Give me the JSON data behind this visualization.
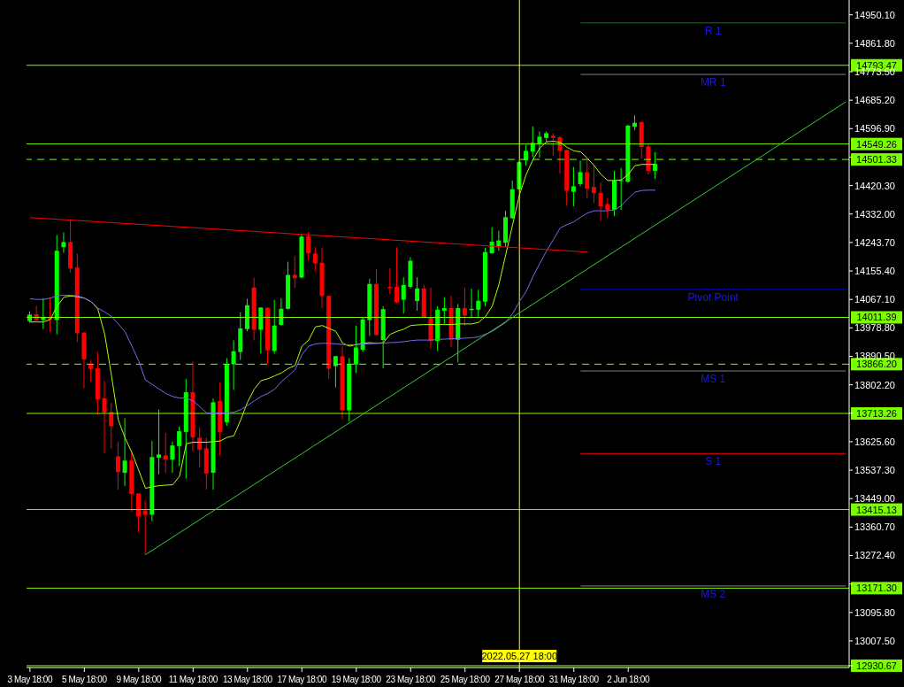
{
  "chart_data": {
    "type": "candlestick",
    "categories": [
      "3 May 18:00",
      null,
      null,
      null,
      null,
      null,
      null,
      null,
      "5 May 18:00",
      null,
      null,
      null,
      null,
      null,
      null,
      null,
      "9 May 18:00",
      null,
      null,
      null,
      null,
      null,
      null,
      null,
      "11 May 18:00",
      null,
      null,
      null,
      null,
      null,
      null,
      null,
      "13 May 18:00",
      null,
      null,
      null,
      null,
      null,
      null,
      null,
      "17 May 18:00",
      null,
      null,
      null,
      null,
      null,
      null,
      null,
      "19 May 18:00",
      null,
      null,
      null,
      null,
      null,
      null,
      null,
      "23 May 18:00",
      null,
      null,
      null,
      null,
      null,
      null,
      null,
      "25 May 18:00",
      null,
      null,
      null,
      null,
      null,
      null,
      null,
      "27 May 18:00",
      null,
      null,
      null,
      null,
      null,
      null,
      null,
      "31 May 18:00",
      null,
      null,
      null,
      null,
      null,
      null,
      null,
      "2 Jun 18:00",
      null,
      null,
      null,
      null,
      null,
      null,
      null,
      null,
      null,
      null,
      null,
      null,
      null,
      null,
      null,
      null,
      null,
      null,
      null,
      null,
      null,
      null,
      null,
      null,
      null,
      null,
      null,
      null,
      null,
      null,
      null,
      null
    ],
    "ohlc": [
      [
        14000,
        14030,
        13995,
        14020
      ],
      [
        14021,
        14046,
        14000,
        14003
      ],
      [
        14003,
        14071,
        13975,
        14012
      ],
      [
        14012,
        14074,
        13966,
        14005
      ],
      [
        14003,
        14267,
        13959,
        14218
      ],
      [
        14229,
        14275,
        14212,
        14245
      ],
      [
        14245,
        14315,
        14150,
        14163
      ],
      [
        14166,
        14209,
        13934,
        13962
      ],
      [
        13964,
        13966,
        13792,
        13881
      ],
      [
        13866,
        13879,
        13812,
        13851
      ],
      [
        13853,
        13904,
        13709,
        13757
      ],
      [
        13760,
        13815,
        13590,
        13716
      ],
      [
        13718,
        13746,
        13603,
        13674
      ],
      [
        13580,
        13625,
        13477,
        13532
      ],
      [
        13529,
        13699,
        13488,
        13567
      ],
      [
        13567,
        13598,
        13408,
        13463
      ],
      [
        13465,
        13465,
        13345,
        13394
      ],
      [
        13412,
        13443,
        13275,
        13399
      ],
      [
        13399,
        13628,
        13379,
        13578
      ],
      [
        13576,
        13725,
        13525,
        13586
      ],
      [
        13583,
        13653,
        13529,
        13570
      ],
      [
        13570,
        13626,
        13529,
        13614
      ],
      [
        13612,
        13672,
        13550,
        13658
      ],
      [
        13656,
        13821,
        13511,
        13779
      ],
      [
        13779,
        13874,
        13595,
        13639
      ],
      [
        13638,
        13670,
        13546,
        13601
      ],
      [
        13605,
        13638,
        13477,
        13527
      ],
      [
        13529,
        13760,
        13477,
        13748
      ],
      [
        13752,
        13809,
        13582,
        13656
      ],
      [
        13686,
        13885,
        13675,
        13867
      ],
      [
        13866,
        13940,
        13786,
        13906
      ],
      [
        13904,
        14027,
        13879,
        13977
      ],
      [
        13975,
        14069,
        13968,
        14049
      ],
      [
        14104,
        14135,
        13940,
        13973
      ],
      [
        13973,
        14043,
        13899,
        14042
      ],
      [
        14041,
        14043,
        13867,
        13909
      ],
      [
        13907,
        14066,
        13899,
        13986
      ],
      [
        13988,
        14071,
        13986,
        14038
      ],
      [
        14038,
        14184,
        14036,
        14143
      ],
      [
        14143,
        14202,
        14103,
        14133
      ],
      [
        14135,
        14270,
        14133,
        14262
      ],
      [
        14264,
        14276,
        14188,
        14210
      ],
      [
        14209,
        14230,
        14154,
        14179
      ],
      [
        14181,
        14228,
        14040,
        14078
      ],
      [
        14078,
        14078,
        13821,
        13852
      ],
      [
        13860,
        13891,
        13794,
        13891
      ],
      [
        13891,
        13922,
        13695,
        13723
      ],
      [
        13723,
        13885,
        13688,
        13867
      ],
      [
        13865,
        13986,
        13839,
        13918
      ],
      [
        13911,
        14012,
        13904,
        14005
      ],
      [
        14003,
        14131,
        13954,
        14115
      ],
      [
        14115,
        14161,
        13954,
        13957
      ],
      [
        13941,
        14046,
        13853,
        14037
      ],
      [
        14106,
        14164,
        14083,
        14102
      ],
      [
        14106,
        14228,
        14055,
        14058
      ],
      [
        14066,
        14136,
        14023,
        14112
      ],
      [
        14106,
        14198,
        14101,
        14187
      ],
      [
        14062,
        14136,
        14032,
        14101
      ],
      [
        14101,
        14112,
        14012,
        14012
      ],
      [
        14012,
        14104,
        13915,
        13938
      ],
      [
        13938,
        14046,
        13907,
        14035
      ],
      [
        14032,
        14074,
        13991,
        14040
      ],
      [
        14040,
        14078,
        13920,
        13942
      ],
      [
        13942,
        14053,
        13872,
        14040
      ],
      [
        14040,
        14104,
        13985,
        14017
      ],
      [
        14034,
        14101,
        14012,
        14038
      ],
      [
        14035,
        14097,
        14012,
        14063
      ],
      [
        14060,
        14227,
        14046,
        14214
      ],
      [
        14210,
        14291,
        14210,
        14246
      ],
      [
        14232,
        14280,
        14218,
        14250
      ],
      [
        14243,
        14342,
        14230,
        14322
      ],
      [
        14319,
        14436,
        14317,
        14409
      ],
      [
        14409,
        14496,
        14407,
        14493
      ],
      [
        14499,
        14547,
        14482,
        14528
      ],
      [
        14526,
        14604,
        14508,
        14553
      ],
      [
        14549,
        14588,
        14507,
        14572
      ],
      [
        14568,
        14588,
        14556,
        14583
      ],
      [
        14575,
        14583,
        14513,
        14568
      ],
      [
        14570,
        14574,
        14457,
        14528
      ],
      [
        14531,
        14531,
        14358,
        14404
      ],
      [
        14401,
        14478,
        14356,
        14418
      ],
      [
        14425,
        14498,
        14418,
        14462
      ],
      [
        14462,
        14498,
        14381,
        14411
      ],
      [
        14416,
        14484,
        14366,
        14397
      ],
      [
        14398,
        14429,
        14311,
        14356
      ],
      [
        14363,
        14381,
        14320,
        14345
      ],
      [
        14345,
        14466,
        14326,
        14436
      ],
      [
        14434,
        14475,
        14345,
        14437
      ],
      [
        14432,
        14609,
        14430,
        14606
      ],
      [
        14603,
        14638,
        14592,
        14615
      ],
      [
        14617,
        14620,
        14503,
        14540
      ],
      [
        14542,
        14547,
        14455,
        14466
      ],
      [
        14466,
        14524,
        14441,
        14487
      ],
      null,
      null,
      null,
      null,
      null,
      null,
      null,
      null,
      null,
      null,
      null,
      null,
      null,
      null,
      null,
      null,
      null,
      null,
      null,
      null,
      null,
      null,
      null,
      null,
      null,
      null,
      null,
      null
    ],
    "colors": [
      "#00ff00",
      "#ff0000",
      "#00ff00",
      "#ff0000",
      "#00ff00",
      "#00ff00",
      "#ff0000",
      "#ff0000",
      "#ff0000",
      "#ff0000",
      "#ff0000",
      "#ff0000",
      "#ff0000",
      "#ff0000",
      "#00ff00",
      "#ff0000",
      "#ff0000",
      "#ff0000",
      "#00ff00",
      "#00ff00",
      "#ff0000",
      "#00ff00",
      "#00ff00",
      "#00ff00",
      "#ff0000",
      "#ff0000",
      "#ff0000",
      "#00ff00",
      "#ff0000",
      "#00ff00",
      "#00ff00",
      "#00ff00",
      "#00ff00",
      "#ff0000",
      "#00ff00",
      "#ff0000",
      "#00ff00",
      "#00ff00",
      "#00ff00",
      "#ff0000",
      "#00ff00",
      "#ff0000",
      "#ff0000",
      "#ff0000",
      "#ff0000",
      "#00ff00",
      "#ff0000",
      "#00ff00",
      "#00ff00",
      "#00ff00",
      "#00ff00",
      "#ff0000",
      "#00ff00",
      "#ff0000",
      "#ff0000",
      "#00ff00",
      "#00ff00",
      "#00ff00",
      "#ff0000",
      "#ff0000",
      "#00ff00",
      "#00ff00",
      "#ff0000",
      "#00ff00",
      "#ff0000",
      "#00ff00",
      "#00ff00",
      "#00ff00",
      "#00ff00",
      "#00ff00",
      "#00ff00",
      "#00ff00",
      "#00ff00",
      "#00ff00",
      "#00ff00",
      "#00ff00",
      "#00ff00",
      "#ff0000",
      "#ff0000",
      "#ff0000",
      "#00ff00",
      "#00ff00",
      "#ff0000",
      "#ff0000",
      "#ff0000",
      "#ff0000",
      "#00ff00",
      "#00ff00",
      "#00ff00",
      "#00ff00",
      "#ff0000",
      "#ff0000",
      "#00ff00",
      null,
      null,
      null,
      null,
      null,
      null,
      null,
      null,
      null,
      null,
      null,
      null,
      null,
      null,
      null,
      null,
      null,
      null,
      null,
      null,
      null,
      null,
      null,
      null,
      null,
      null,
      null,
      null
    ],
    "series": [
      {
        "type": "line",
        "color": "#b0ff00",
        "values": [
          13997,
          13997,
          13997,
          14005,
          14046,
          14074,
          14078,
          14075,
          14071,
          14060,
          14037,
          13959,
          13830,
          13693,
          13637,
          13592,
          13537,
          13481,
          13486,
          13489,
          13491,
          13492,
          13518,
          13619,
          13624,
          13624,
          13624,
          13626,
          13628,
          13639,
          13644,
          13693,
          13748,
          13789,
          13815,
          13821,
          13830,
          13839,
          13853,
          13862,
          13922,
          13941,
          13982,
          13986,
          13977,
          13968,
          13931,
          13922,
          13927,
          13931,
          13933,
          13931,
          13933,
          13959,
          13968,
          13975,
          13986,
          13988,
          13989,
          13989,
          13989,
          13989,
          13989,
          13991,
          13991,
          13991,
          13996,
          14014,
          14046,
          14115,
          14207,
          14299,
          14391,
          14455,
          14501,
          14537,
          14556,
          14558,
          14554,
          14539,
          14528,
          14525,
          14505,
          14482,
          14455,
          14436,
          14436,
          14438,
          14455,
          14482,
          14486,
          14486,
          14486,
          null,
          null,
          null,
          null,
          null,
          null,
          null,
          null,
          null,
          null,
          null,
          null,
          null,
          null,
          null,
          null,
          null,
          null,
          null,
          null,
          null,
          null,
          null,
          null,
          null,
          null,
          null,
          null
        ]
      },
      {
        "type": "line",
        "color": "#7b68ee",
        "values": [
          14069,
          14067,
          14067,
          14071,
          14078,
          14080,
          14080,
          14078,
          14071,
          14060,
          14040,
          14028,
          14014,
          13991,
          13966,
          13922,
          13876,
          13817,
          13803,
          13789,
          13775,
          13766,
          13761,
          13761,
          13752,
          13734,
          13715,
          13715,
          13715,
          13715,
          13717,
          13725,
          13738,
          13752,
          13766,
          13775,
          13789,
          13812,
          13830,
          13849,
          13895,
          13922,
          13929,
          13931,
          13931,
          13929,
          13927,
          13926,
          13927,
          13929,
          13929,
          13931,
          13931,
          13933,
          13934,
          13936,
          13939,
          13941,
          13941,
          13941,
          13943,
          13944,
          13945,
          13946,
          13947,
          13948,
          13951,
          13959,
          13968,
          13982,
          13996,
          14023,
          14060,
          14092,
          14138,
          14179,
          14218,
          14253,
          14289,
          14299,
          14308,
          14322,
          14335,
          14342,
          14342,
          14342,
          14345,
          14358,
          14380,
          14400,
          14405,
          14406,
          14406,
          null,
          null,
          null,
          null,
          null,
          null,
          null,
          null,
          null,
          null,
          null,
          null,
          null,
          null,
          null,
          null,
          null,
          null,
          null,
          null,
          null,
          null,
          null,
          null,
          null,
          null,
          null,
          null
        ]
      },
      {
        "type": "line",
        "color": "#ff0000",
        "values": [
          14321,
          null,
          null,
          null,
          null,
          null,
          null,
          null,
          null,
          null,
          null,
          null,
          null,
          null,
          null,
          null,
          null,
          null,
          null,
          null,
          null,
          null,
          null,
          null,
          null,
          null,
          null,
          null,
          null,
          null,
          null,
          null,
          null,
          null,
          null,
          null,
          null,
          null,
          null,
          null,
          null,
          null,
          null,
          null,
          null,
          null,
          null,
          null,
          null,
          null,
          null,
          null,
          null,
          null,
          null,
          null,
          null,
          null,
          null,
          null,
          null,
          null,
          null,
          null,
          null,
          null,
          null,
          null,
          null,
          null,
          null,
          null,
          null,
          null,
          null,
          null,
          null,
          null,
          null,
          null,
          null,
          null,
          14214,
          null,
          null,
          null,
          null,
          null,
          null,
          null,
          null,
          null,
          null,
          null,
          null,
          null,
          null,
          null,
          null,
          null,
          null,
          null,
          null,
          null,
          null,
          null,
          null,
          null,
          null,
          null,
          null,
          null,
          null,
          null,
          null,
          null,
          null,
          null,
          null,
          null,
          null
        ]
      },
      {
        "type": "line",
        "color": "#32cd32",
        "values": [
          null,
          null,
          null,
          null,
          null,
          null,
          null,
          null,
          null,
          null,
          null,
          null,
          null,
          null,
          null,
          null,
          null,
          13275,
          null,
          null,
          null,
          null,
          null,
          null,
          null,
          null,
          null,
          null,
          null,
          null,
          null,
          null,
          null,
          null,
          null,
          null,
          null,
          null,
          null,
          null,
          null,
          null,
          null,
          null,
          null,
          null,
          null,
          null,
          null,
          null,
          null,
          null,
          null,
          null,
          null,
          null,
          null,
          null,
          null,
          null,
          null,
          null,
          null,
          null,
          null,
          null,
          null,
          null,
          null,
          null,
          null,
          null,
          null,
          null,
          null,
          null,
          null,
          null,
          null,
          null,
          null,
          null,
          null,
          null,
          null,
          null,
          null,
          null,
          null,
          null,
          null,
          null,
          null,
          null,
          null,
          null,
          null,
          null,
          null,
          null,
          null,
          null,
          null,
          null,
          null,
          null,
          null,
          null,
          null,
          null,
          null,
          null,
          null,
          null,
          null,
          null,
          null,
          null,
          null,
          null,
          14680
        ]
      },
      {
        "type": "line",
        "name": "R 1",
        "color": "#008000",
        "values": [
          null,
          null,
          null,
          null,
          null,
          null,
          null,
          null,
          null,
          null,
          null,
          null,
          null,
          null,
          null,
          null,
          null,
          null,
          null,
          null,
          null,
          null,
          null,
          null,
          null,
          null,
          null,
          null,
          null,
          null,
          null,
          null,
          null,
          null,
          null,
          null,
          null,
          null,
          null,
          null,
          null,
          null,
          null,
          null,
          null,
          null,
          null,
          null,
          null,
          null,
          null,
          null,
          null,
          null,
          null,
          null,
          null,
          null,
          null,
          null,
          null,
          null,
          null,
          null,
          null,
          null,
          null,
          null,
          null,
          null,
          null,
          null,
          null,
          null,
          null,
          null,
          null,
          null,
          null,
          null,
          null,
          14925,
          null,
          null,
          null,
          null,
          null,
          null,
          null,
          null,
          null,
          null,
          null,
          null,
          null,
          null,
          null,
          null,
          null,
          null,
          null,
          null,
          null,
          null,
          null,
          null,
          null,
          null,
          null,
          null,
          null,
          null,
          null,
          null,
          null,
          null,
          null,
          null,
          null,
          null,
          14925
        ]
      },
      {
        "type": "line",
        "name": "MR 1",
        "color": "#808080",
        "values": [
          null,
          null,
          null,
          null,
          null,
          null,
          null,
          null,
          null,
          null,
          null,
          null,
          null,
          null,
          null,
          null,
          null,
          null,
          null,
          null,
          null,
          null,
          null,
          null,
          null,
          null,
          null,
          null,
          null,
          null,
          null,
          null,
          null,
          null,
          null,
          null,
          null,
          null,
          null,
          null,
          null,
          null,
          null,
          null,
          null,
          null,
          null,
          null,
          null,
          null,
          null,
          null,
          null,
          null,
          null,
          null,
          null,
          null,
          null,
          null,
          null,
          null,
          null,
          null,
          null,
          null,
          null,
          null,
          null,
          null,
          null,
          null,
          null,
          null,
          null,
          null,
          null,
          null,
          null,
          null,
          null,
          14765,
          null,
          null,
          null,
          null,
          null,
          null,
          null,
          null,
          null,
          null,
          null,
          null,
          null,
          null,
          null,
          null,
          null,
          null,
          null,
          null,
          null,
          null,
          null,
          null,
          null,
          null,
          null,
          null,
          null,
          null,
          null,
          null,
          null,
          null,
          null,
          null,
          null,
          null,
          14765
        ]
      },
      {
        "type": "line",
        "name": "Pivot Point",
        "color": "#0000ff",
        "values": [
          null,
          null,
          null,
          null,
          null,
          null,
          null,
          null,
          null,
          null,
          null,
          null,
          null,
          null,
          null,
          null,
          null,
          null,
          null,
          null,
          null,
          null,
          null,
          null,
          null,
          null,
          null,
          null,
          null,
          null,
          null,
          null,
          null,
          null,
          null,
          null,
          null,
          null,
          null,
          null,
          null,
          null,
          null,
          null,
          null,
          null,
          null,
          null,
          null,
          null,
          null,
          null,
          null,
          null,
          null,
          null,
          null,
          null,
          null,
          null,
          null,
          null,
          null,
          null,
          null,
          null,
          null,
          null,
          null,
          null,
          null,
          null,
          null,
          null,
          null,
          null,
          null,
          null,
          null,
          null,
          null,
          14098,
          null,
          null,
          null,
          null,
          null,
          null,
          null,
          null,
          null,
          null,
          null,
          null,
          null,
          null,
          null,
          null,
          null,
          null,
          null,
          null,
          null,
          null,
          null,
          null,
          null,
          null,
          null,
          null,
          null,
          null,
          null,
          null,
          null,
          null,
          null,
          null,
          null,
          null,
          14098
        ]
      },
      {
        "type": "line",
        "name": "MS 1",
        "color": "#808080",
        "values": [
          null,
          null,
          null,
          null,
          null,
          null,
          null,
          null,
          null,
          null,
          null,
          null,
          null,
          null,
          null,
          null,
          null,
          null,
          null,
          null,
          null,
          null,
          null,
          null,
          null,
          null,
          null,
          null,
          null,
          null,
          null,
          null,
          null,
          null,
          null,
          null,
          null,
          null,
          null,
          null,
          null,
          null,
          null,
          null,
          null,
          null,
          null,
          null,
          null,
          null,
          null,
          null,
          null,
          null,
          null,
          null,
          null,
          null,
          null,
          null,
          null,
          null,
          null,
          null,
          null,
          null,
          null,
          null,
          null,
          null,
          null,
          null,
          null,
          null,
          null,
          null,
          null,
          null,
          null,
          null,
          null,
          13845,
          null,
          null,
          null,
          null,
          null,
          null,
          null,
          null,
          null,
          null,
          null,
          null,
          null,
          null,
          null,
          null,
          null,
          null,
          null,
          null,
          null,
          null,
          null,
          null,
          null,
          null,
          null,
          null,
          null,
          null,
          null,
          null,
          null,
          null,
          null,
          null,
          null,
          null,
          13845
        ]
      },
      {
        "type": "line",
        "name": "S 1",
        "color": "#ff0000",
        "values": [
          null,
          null,
          null,
          null,
          null,
          null,
          null,
          null,
          null,
          null,
          null,
          null,
          null,
          null,
          null,
          null,
          null,
          null,
          null,
          null,
          null,
          null,
          null,
          null,
          null,
          null,
          null,
          null,
          null,
          null,
          null,
          null,
          null,
          null,
          null,
          null,
          null,
          null,
          null,
          null,
          null,
          null,
          null,
          null,
          null,
          null,
          null,
          null,
          null,
          null,
          null,
          null,
          null,
          null,
          null,
          null,
          null,
          null,
          null,
          null,
          null,
          null,
          null,
          null,
          null,
          null,
          null,
          null,
          null,
          null,
          null,
          null,
          null,
          null,
          null,
          null,
          null,
          null,
          null,
          null,
          null,
          13589,
          null,
          null,
          null,
          null,
          null,
          null,
          null,
          null,
          null,
          null,
          null,
          null,
          null,
          null,
          null,
          null,
          null,
          null,
          null,
          null,
          null,
          null,
          null,
          null,
          null,
          null,
          null,
          null,
          null,
          null,
          null,
          null,
          null,
          null,
          null,
          null,
          null,
          null,
          13589
        ]
      },
      {
        "type": "line",
        "name": "MS 2",
        "color": "#808080",
        "values": [
          null,
          null,
          null,
          null,
          null,
          null,
          null,
          null,
          null,
          null,
          null,
          null,
          null,
          null,
          null,
          null,
          null,
          null,
          null,
          null,
          null,
          null,
          null,
          null,
          null,
          null,
          null,
          null,
          null,
          null,
          null,
          null,
          null,
          null,
          null,
          null,
          null,
          null,
          null,
          null,
          null,
          null,
          null,
          null,
          null,
          null,
          null,
          null,
          null,
          null,
          null,
          null,
          null,
          null,
          null,
          null,
          null,
          null,
          null,
          null,
          null,
          null,
          null,
          null,
          null,
          null,
          null,
          null,
          null,
          null,
          null,
          null,
          null,
          null,
          null,
          null,
          null,
          null,
          null,
          null,
          null,
          13178,
          null,
          null,
          null,
          null,
          null,
          null,
          null,
          null,
          null,
          null,
          null,
          null,
          null,
          null,
          null,
          null,
          null,
          null,
          null,
          null,
          null,
          null,
          null,
          null,
          null,
          null,
          null,
          null,
          null,
          null,
          null,
          null,
          null,
          null,
          null,
          null,
          null,
          null,
          13178
        ]
      }
    ],
    "ylim": [
      12925,
      14996
    ],
    "yticks": [
      {
        "value": 12930.67,
        "label": null
      },
      {
        "value": 13007.5,
        "label": "13007.50"
      },
      {
        "value": 13095.8,
        "label": "13095.80"
      },
      {
        "value": 13184.1,
        "label": null
      },
      {
        "value": 13272.4,
        "label": "13272.40"
      },
      {
        "value": 13360.7,
        "label": "13360.70"
      },
      {
        "value": 13449,
        "label": "13449.00"
      },
      {
        "value": 13537.3,
        "label": "13537.30"
      },
      {
        "value": 13625.6,
        "label": "13625.60"
      },
      {
        "value": 13713.9,
        "label": null
      },
      {
        "value": 13802.2,
        "label": "13802.20"
      },
      {
        "value": 13890.5,
        "label": "13890.50"
      },
      {
        "value": 13978.8,
        "label": "13978.80"
      },
      {
        "value": 14067.1,
        "label": "14067.10"
      },
      {
        "value": 14155.4,
        "label": "14155.40"
      },
      {
        "value": 14243.7,
        "label": "14243.70"
      },
      {
        "value": 14332,
        "label": "14332.00"
      },
      {
        "value": 14420.3,
        "label": "14420.30"
      },
      {
        "value": 14508.6,
        "label": null
      },
      {
        "value": 14596.9,
        "label": "14596.90"
      },
      {
        "value": 14685.2,
        "label": "14685.20"
      },
      {
        "value": 14773.5,
        "label": "14773.50"
      },
      {
        "value": 14861.8,
        "label": "14861.80"
      },
      {
        "value": 14950.1,
        "label": "14950.10"
      }
    ],
    "ref_lines": [
      {
        "axis": "y",
        "value": 14793.47,
        "label": "14793.47",
        "color": "#7cfc00",
        "line_style": "solid"
      },
      {
        "axis": "y",
        "value": 14549.26,
        "label": "14549.26",
        "color": "#7cfc00",
        "line_style": "solid"
      },
      {
        "axis": "y",
        "value": 14501.33,
        "label": "14501.33",
        "color": "#7cfc00",
        "line_style": "dashed"
      },
      {
        "axis": "y",
        "value": 14011.39,
        "label": "14011.39",
        "color": "#7cfc00",
        "line_style": "solid"
      },
      {
        "axis": "y",
        "value": 13866.2,
        "label": "13866.20",
        "color": "#7cfc00",
        "line_style": "dashed"
      },
      {
        "axis": "y",
        "value": 13713.26,
        "label": "13713.26",
        "color": "#7cfc00",
        "line_style": "solid"
      },
      {
        "axis": "y",
        "value": 13415.13,
        "label": "13415.13",
        "color": "#7cfc00",
        "line_style": "solid"
      },
      {
        "axis": "y",
        "value": 13171.3,
        "label": "13171.30",
        "color": "#7cfc00",
        "line_style": "solid"
      },
      {
        "axis": "y",
        "value": 12930.67,
        "label": "12930.67",
        "color": "#7cfc00",
        "line_style": "solid"
      },
      {
        "axis": "x",
        "value": "27 May 18:00",
        "label": "2022.05.27 18:00",
        "color": "#ffff00",
        "line_style": "solid"
      }
    ],
    "grid": false,
    "legend": false
  }
}
